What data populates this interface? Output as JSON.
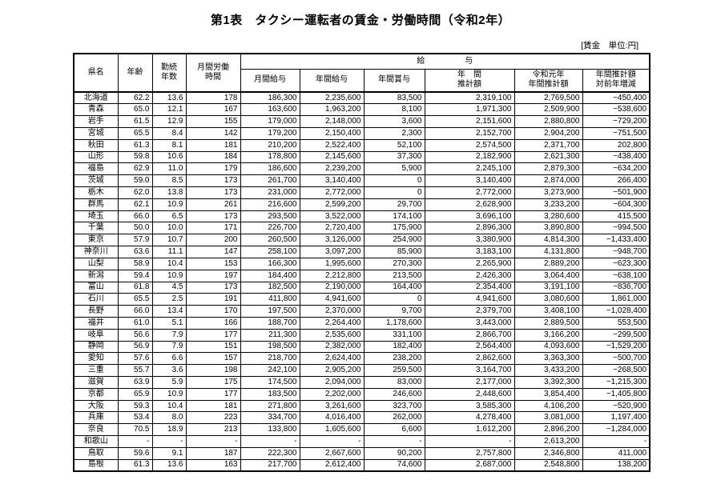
{
  "title": "第1表　タクシー運転者の賃金・労働時間（令和2年）",
  "unit_note": "[賃金　単位:円]",
  "table": {
    "group_header": "給　　　　　与",
    "columns": [
      {
        "label": "県名"
      },
      {
        "label": "年齢"
      },
      {
        "label": "勤続\n年数"
      },
      {
        "label": "月間労働\n時間"
      },
      {
        "label": "月間給与"
      },
      {
        "label": "年間給与"
      },
      {
        "label": "年間賞与"
      },
      {
        "label": "年　間\n推計額"
      },
      {
        "label": "令和元年\n年間推計額"
      },
      {
        "label": "年間推計額\n対前年増減"
      }
    ],
    "rows": [
      [
        "北海道",
        "62.2",
        "13.6",
        "178",
        "186,300",
        "2,235,600",
        "83,500",
        "2,319,100",
        "2,769,500",
        "−450,400"
      ],
      [
        "青森",
        "65.0",
        "12.1",
        "167",
        "163,600",
        "1,963,200",
        "8,100",
        "1,971,300",
        "2,509,900",
        "−538,600"
      ],
      [
        "岩手",
        "61.5",
        "12.9",
        "155",
        "179,000",
        "2,148,000",
        "3,600",
        "2,151,600",
        "2,880,800",
        "−729,200"
      ],
      [
        "宮城",
        "65.5",
        "8.4",
        "142",
        "179,200",
        "2,150,400",
        "2,300",
        "2,152,700",
        "2,904,200",
        "−751,500"
      ],
      [
        "秋田",
        "61.3",
        "8.1",
        "181",
        "210,200",
        "2,522,400",
        "52,100",
        "2,574,500",
        "2,371,700",
        "202,800"
      ],
      [
        "山形",
        "59.8",
        "10.6",
        "184",
        "178,800",
        "2,145,600",
        "37,300",
        "2,182,900",
        "2,621,300",
        "−438,400"
      ],
      [
        "福島",
        "62.9",
        "11.0",
        "179",
        "186,600",
        "2,239,200",
        "5,900",
        "2,245,100",
        "2,879,300",
        "−634,200"
      ],
      [
        "茨城",
        "59.0",
        "8.5",
        "173",
        "261,700",
        "3,140,400",
        "0",
        "3,140,400",
        "2,874,000",
        "266,400"
      ],
      [
        "栃木",
        "62.0",
        "13.8",
        "173",
        "231,000",
        "2,772,000",
        "0",
        "2,772,000",
        "3,273,900",
        "−501,900"
      ],
      [
        "群馬",
        "62.1",
        "10.9",
        "261",
        "216,600",
        "2,599,200",
        "29,700",
        "2,628,900",
        "3,233,200",
        "−604,300"
      ],
      [
        "埼玉",
        "66.0",
        "6.5",
        "173",
        "293,500",
        "3,522,000",
        "174,100",
        "3,696,100",
        "3,280,600",
        "415,500"
      ],
      [
        "千葉",
        "50.0",
        "10.0",
        "171",
        "226,700",
        "2,720,400",
        "175,900",
        "2,896,300",
        "3,890,800",
        "−994,500"
      ],
      [
        "東京",
        "57.9",
        "10.7",
        "200",
        "260,500",
        "3,126,000",
        "254,900",
        "3,380,900",
        "4,814,300",
        "−1,433,400"
      ],
      [
        "神奈川",
        "63.6",
        "11.1",
        "147",
        "258,100",
        "3,097,200",
        "85,900",
        "3,183,100",
        "4,131,800",
        "−948,700"
      ],
      [
        "山梨",
        "58.9",
        "10.4",
        "153",
        "166,300",
        "1,995,600",
        "270,300",
        "2,265,900",
        "2,889,200",
        "−623,300"
      ],
      [
        "新潟",
        "59.4",
        "10.9",
        "197",
        "184,400",
        "2,212,800",
        "213,500",
        "2,426,300",
        "3,064,400",
        "−638,100"
      ],
      [
        "富山",
        "61.8",
        "4.5",
        "173",
        "182,500",
        "2,190,000",
        "164,400",
        "2,354,400",
        "3,191,100",
        "−836,700"
      ],
      [
        "石川",
        "65.5",
        "2.5",
        "191",
        "411,800",
        "4,941,600",
        "0",
        "4,941,600",
        "3,080,600",
        "1,861,000"
      ],
      [
        "長野",
        "66.0",
        "13.4",
        "170",
        "197,500",
        "2,370,000",
        "9,700",
        "2,379,700",
        "3,408,100",
        "−1,028,400"
      ],
      [
        "福井",
        "61.0",
        "5.1",
        "166",
        "188,700",
        "2,264,400",
        "1,178,600",
        "3,443,000",
        "2,889,500",
        "553,500"
      ],
      [
        "岐阜",
        "56.6",
        "7.9",
        "177",
        "211,300",
        "2,535,600",
        "331,100",
        "2,866,700",
        "3,166,200",
        "−299,500"
      ],
      [
        "静岡",
        "56.9",
        "7.9",
        "151",
        "198,500",
        "2,382,000",
        "182,400",
        "2,564,400",
        "4,093,600",
        "−1,529,200"
      ],
      [
        "愛知",
        "57.6",
        "6.6",
        "157",
        "218,700",
        "2,624,400",
        "238,200",
        "2,862,600",
        "3,363,300",
        "−500,700"
      ],
      [
        "三重",
        "55.7",
        "3.6",
        "198",
        "242,100",
        "2,905,200",
        "259,500",
        "3,164,700",
        "3,433,200",
        "−268,500"
      ],
      [
        "滋賀",
        "63.9",
        "5.9",
        "175",
        "174,500",
        "2,094,000",
        "83,000",
        "2,177,000",
        "3,392,300",
        "−1,215,300"
      ],
      [
        "京都",
        "65.9",
        "10.9",
        "177",
        "183,500",
        "2,202,000",
        "246,600",
        "2,448,600",
        "3,854,400",
        "−1,405,800"
      ],
      [
        "大阪",
        "59.3",
        "10.4",
        "181",
        "271,800",
        "3,261,600",
        "323,700",
        "3,585,300",
        "4,106,200",
        "−520,900"
      ],
      [
        "兵庫",
        "53.4",
        "8.0",
        "223",
        "334,700",
        "4,016,400",
        "262,000",
        "4,278,400",
        "3,081,000",
        "1,197,400"
      ],
      [
        "奈良",
        "70.5",
        "18.9",
        "213",
        "133,800",
        "1,605,600",
        "6,600",
        "1,612,200",
        "2,896,200",
        "−1,284,000"
      ],
      [
        "和歌山",
        "-",
        "-",
        "-",
        "-",
        "-",
        "-",
        "-",
        "2,613,200",
        "-"
      ],
      [
        "鳥取",
        "59.6",
        "9.1",
        "187",
        "222,300",
        "2,667,600",
        "90,200",
        "2,757,800",
        "2,346,800",
        "411,000"
      ],
      [
        "島根",
        "61.3",
        "13.6",
        "163",
        "217,700",
        "2,612,400",
        "74,600",
        "2,687,000",
        "2,548,800",
        "138,200"
      ]
    ]
  }
}
